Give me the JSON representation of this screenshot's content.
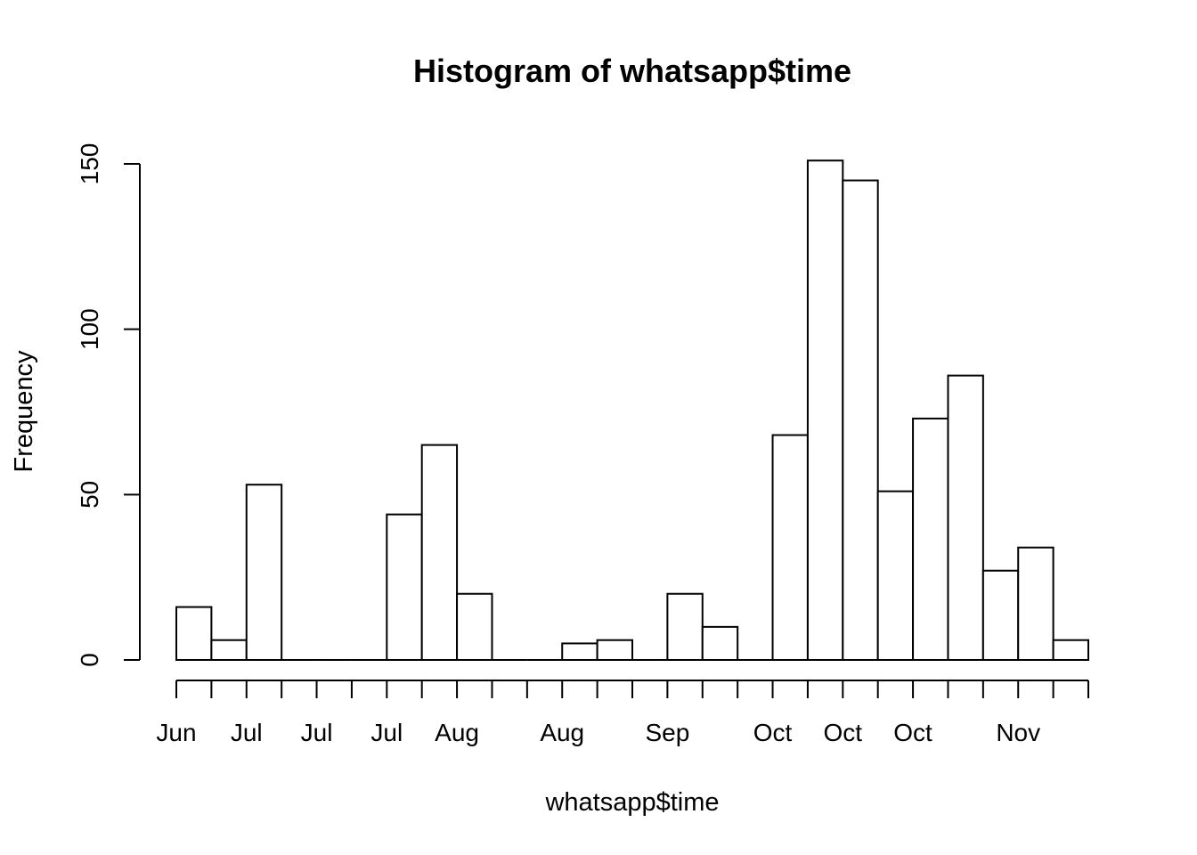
{
  "chart_data": {
    "type": "bar",
    "title": "Histogram of whatsapp$time",
    "xlabel": "whatsapp$time",
    "ylabel": "Frequency",
    "ylim": [
      0,
      150
    ],
    "yticks": [
      0,
      50,
      100,
      150
    ],
    "bins": 26,
    "values": [
      16,
      6,
      53,
      0,
      0,
      0,
      44,
      65,
      20,
      0,
      0,
      5,
      6,
      0,
      20,
      10,
      0,
      68,
      151,
      145,
      51,
      73,
      86,
      27,
      34,
      6
    ],
    "xtick_labels": [
      {
        "bin_edge": 0,
        "label": "Jun"
      },
      {
        "bin_edge": 2,
        "label": "Jul"
      },
      {
        "bin_edge": 4,
        "label": "Jul"
      },
      {
        "bin_edge": 6,
        "label": "Jul"
      },
      {
        "bin_edge": 8,
        "label": "Aug"
      },
      {
        "bin_edge": 11,
        "label": "Aug"
      },
      {
        "bin_edge": 14,
        "label": "Sep"
      },
      {
        "bin_edge": 17,
        "label": "Oct"
      },
      {
        "bin_edge": 19,
        "label": "Oct"
      },
      {
        "bin_edge": 21,
        "label": "Oct"
      },
      {
        "bin_edge": 24,
        "label": "Nov"
      }
    ],
    "grid": false,
    "legend": "none"
  }
}
